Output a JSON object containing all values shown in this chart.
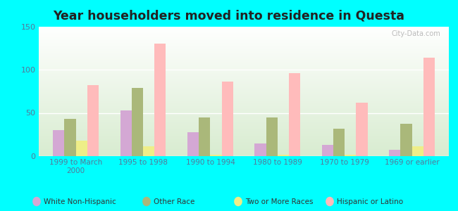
{
  "title": "Year householders moved into residence in Questa",
  "categories": [
    "1999 to March\n2000",
    "1995 to 1998",
    "1990 to 1994",
    "1980 to 1989",
    "1970 to 1979",
    "1969 or earlier"
  ],
  "series": {
    "White Non-Hispanic": [
      30,
      53,
      28,
      15,
      13,
      7
    ],
    "Other Race": [
      43,
      79,
      45,
      45,
      32,
      37
    ],
    "Two or More Races": [
      18,
      11,
      2,
      2,
      2,
      11
    ],
    "Hispanic or Latino": [
      82,
      130,
      86,
      96,
      62,
      114
    ]
  },
  "colors": {
    "White Non-Hispanic": "#d4a8d4",
    "Other Race": "#aab87a",
    "Two or More Races": "#eeee88",
    "Hispanic or Latino": "#ffbbbb"
  },
  "ylim": [
    0,
    150
  ],
  "yticks": [
    0,
    50,
    100,
    150
  ],
  "outer_background": "#00ffff",
  "bar_width": 0.17,
  "watermark": "City-Data.com",
  "title_color": "#222222",
  "tick_color": "#557799",
  "bg_top": "#ffffff",
  "bg_bottom": "#d8ecd0"
}
